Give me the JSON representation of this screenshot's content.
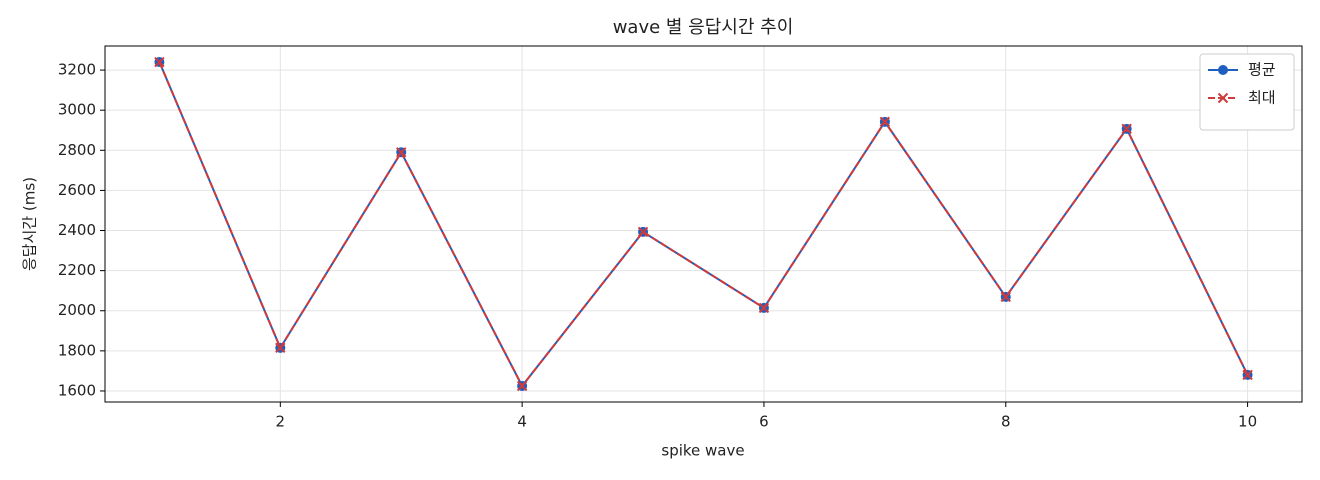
{
  "chart_data": {
    "type": "line",
    "title": "wave 별 응답시간 추이",
    "x_label": "spike wave",
    "y_label": "응답시간 (ms)",
    "x": [
      1,
      2,
      3,
      4,
      5,
      6,
      7,
      8,
      9,
      10
    ],
    "series": [
      {
        "name": "평균",
        "color": "#1f5fbf",
        "marker": "o",
        "linestyle": "solid",
        "values": [
          3240,
          1815,
          2790,
          1625,
          2393,
          2014,
          2942,
          2069,
          2907,
          1680
        ]
      },
      {
        "name": "최대",
        "color": "#d03a3a",
        "marker": "x",
        "linestyle": "dashed",
        "values": [
          3240,
          1815,
          2790,
          1625,
          2393,
          2014,
          2942,
          2069,
          2907,
          1680
        ]
      }
    ],
    "xlim": [
      0.55,
      10.45
    ],
    "xticks": [
      2,
      4,
      6,
      8,
      10
    ],
    "ylim": [
      1545,
      3320
    ],
    "yticks": [
      1600,
      1800,
      2000,
      2200,
      2400,
      2600,
      2800,
      3000,
      3200
    ],
    "grid": true,
    "legend": "upper-right"
  }
}
